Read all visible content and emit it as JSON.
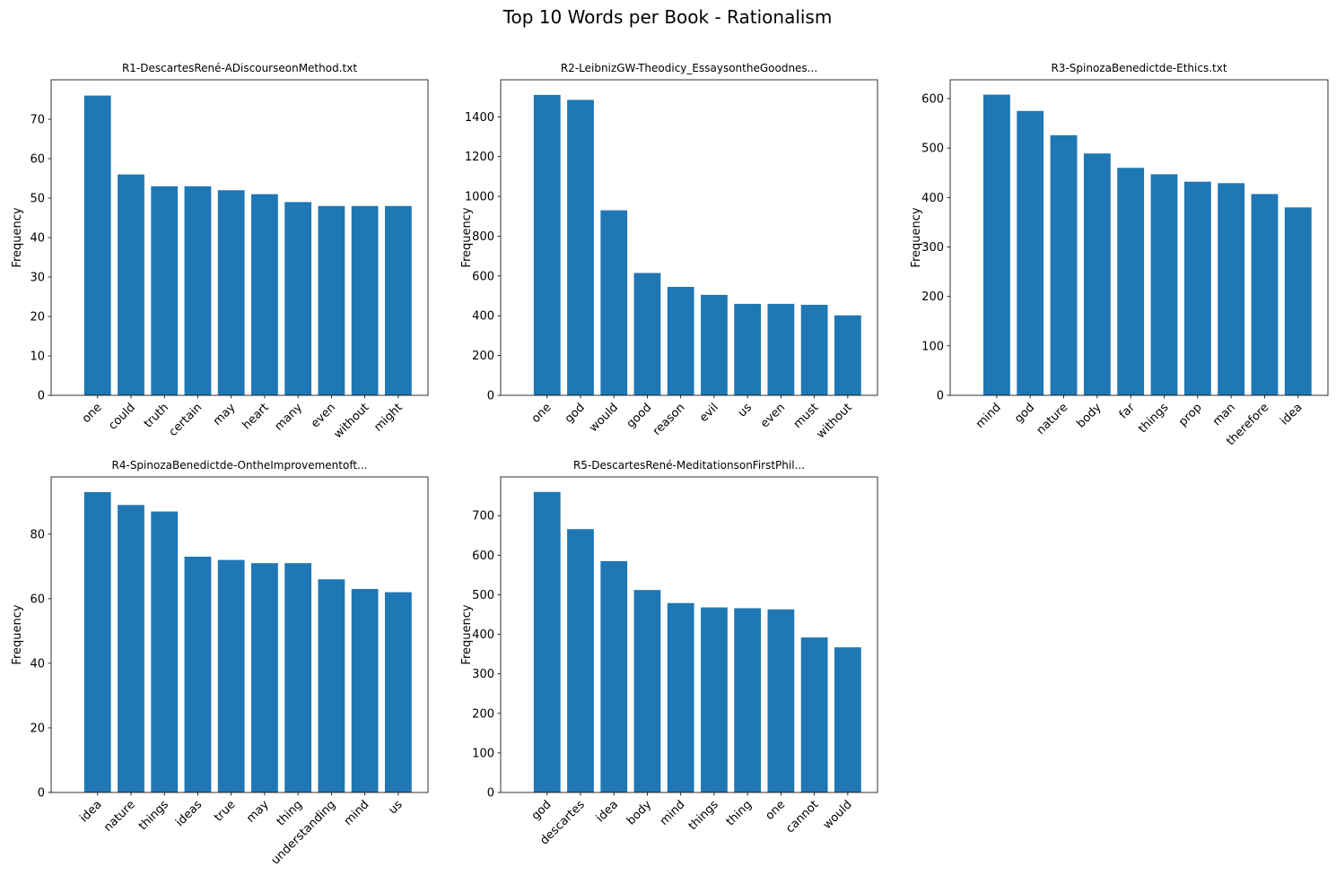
{
  "figure": {
    "title": "Top 10 Words per Book - Rationalism",
    "bar_color": "#1f77b4"
  },
  "chart_data": [
    {
      "type": "bar",
      "title": "R1-DescartesRené-ADiscourseonMethod.txt",
      "xlabel": "",
      "ylabel": "Frequency",
      "categories": [
        "one",
        "could",
        "truth",
        "certain",
        "may",
        "heart",
        "many",
        "even",
        "without",
        "might"
      ],
      "values": [
        76,
        56,
        53,
        53,
        52,
        51,
        49,
        48,
        48,
        48
      ],
      "ylim": [
        0,
        80
      ],
      "yticks": [
        0,
        10,
        20,
        30,
        40,
        50,
        60,
        70
      ],
      "grid": false
    },
    {
      "type": "bar",
      "title": "R2-LeibnizGW-Theodicy_EssaysontheGoodnes...",
      "xlabel": "",
      "ylabel": "Frequency",
      "categories": [
        "one",
        "god",
        "would",
        "good",
        "reason",
        "evil",
        "us",
        "even",
        "must",
        "without"
      ],
      "values": [
        1510,
        1485,
        930,
        615,
        545,
        505,
        460,
        460,
        455,
        402
      ],
      "ylim": [
        0,
        1586
      ],
      "yticks": [
        0,
        200,
        400,
        600,
        800,
        1000,
        1200,
        1400
      ],
      "grid": false
    },
    {
      "type": "bar",
      "title": "R3-SpinozaBenedictde-Ethics.txt",
      "xlabel": "",
      "ylabel": "Frequency",
      "categories": [
        "mind",
        "god",
        "nature",
        "body",
        "far",
        "things",
        "prop",
        "man",
        "therefore",
        "idea"
      ],
      "values": [
        608,
        575,
        526,
        489,
        460,
        447,
        432,
        429,
        407,
        380
      ],
      "ylim": [
        0,
        638
      ],
      "yticks": [
        0,
        100,
        200,
        300,
        400,
        500,
        600
      ],
      "grid": false
    },
    {
      "type": "bar",
      "title": "R4-SpinozaBenedictde-OntheImprovementoft...",
      "xlabel": "",
      "ylabel": "Frequency",
      "categories": [
        "idea",
        "nature",
        "things",
        "ideas",
        "true",
        "may",
        "thing",
        "understanding",
        "mind",
        "us"
      ],
      "values": [
        93,
        89,
        87,
        73,
        72,
        71,
        71,
        66,
        63,
        62
      ],
      "ylim": [
        0,
        97.7
      ],
      "yticks": [
        0,
        20,
        40,
        60,
        80
      ],
      "grid": false
    },
    {
      "type": "bar",
      "title": "R5-DescartesRené-MeditationsonFirstPhil...",
      "xlabel": "",
      "ylabel": "Frequency",
      "categories": [
        "god",
        "descartes",
        "idea",
        "body",
        "mind",
        "things",
        "thing",
        "one",
        "cannot",
        "would"
      ],
      "values": [
        760,
        666,
        585,
        512,
        479,
        468,
        466,
        463,
        392,
        367
      ],
      "ylim": [
        0,
        798
      ],
      "yticks": [
        0,
        100,
        200,
        300,
        400,
        500,
        600,
        700
      ],
      "grid": false
    }
  ]
}
